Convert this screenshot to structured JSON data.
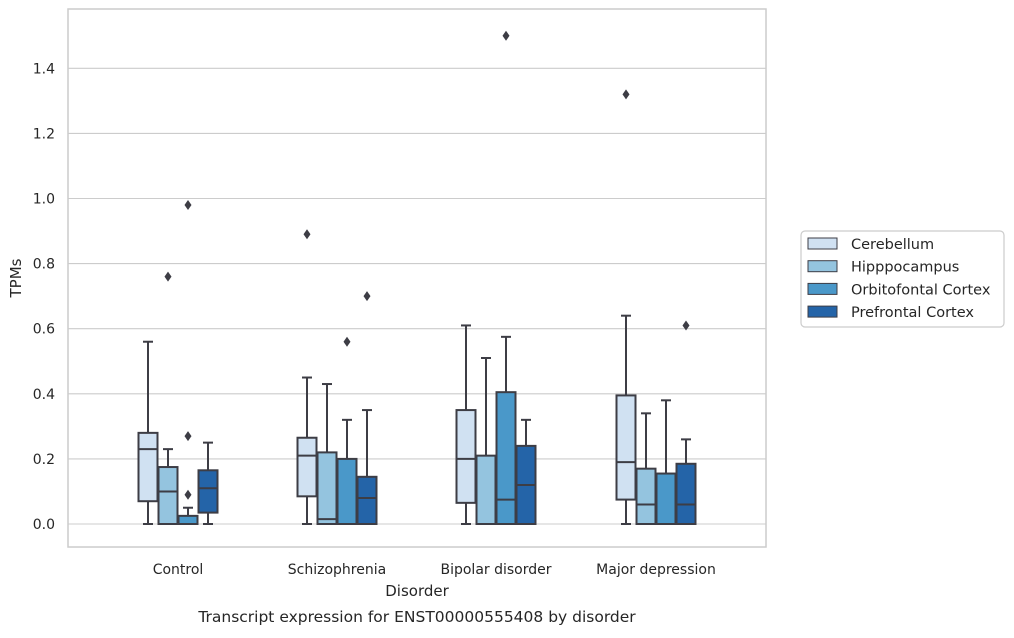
{
  "chart_data": {
    "type": "box",
    "title": "",
    "caption": "Transcript expression for ENST00000555408 by disorder",
    "xlabel": "Disorder",
    "ylabel": "TPMs",
    "ylim": [
      -0.072,
      1.585
    ],
    "yticks": [
      0.0,
      0.2,
      0.4,
      0.6,
      0.8,
      1.0,
      1.2,
      1.4
    ],
    "ytick_labels": [
      "0.0",
      "0.2",
      "0.4",
      "0.6",
      "0.8",
      "1.0",
      "1.2",
      "1.4"
    ],
    "grid": "y",
    "legend_placement": "right",
    "categories": [
      "Control",
      "Schizophrenia",
      "Bipolar disorder",
      "Major depression"
    ],
    "series": [
      {
        "name": "Cerebellum",
        "color": "#d0e1f2",
        "boxes": [
          {
            "whislo": 0.0,
            "q1": 0.07,
            "med": 0.23,
            "q3": 0.28,
            "whishi": 0.56,
            "fliers": []
          },
          {
            "whislo": 0.0,
            "q1": 0.085,
            "med": 0.21,
            "q3": 0.265,
            "whishi": 0.45,
            "fliers": [
              0.89
            ]
          },
          {
            "whislo": 0.0,
            "q1": 0.065,
            "med": 0.2,
            "q3": 0.35,
            "whishi": 0.61,
            "fliers": []
          },
          {
            "whislo": 0.0,
            "q1": 0.075,
            "med": 0.19,
            "q3": 0.395,
            "whishi": 0.64,
            "fliers": [
              1.32
            ]
          }
        ]
      },
      {
        "name": "Hipppocampus",
        "color": "#94c4df",
        "boxes": [
          {
            "whislo": 0.0,
            "q1": 0.0,
            "med": 0.1,
            "q3": 0.175,
            "whishi": 0.23,
            "fliers": [
              0.76
            ]
          },
          {
            "whislo": 0.0,
            "q1": 0.0,
            "med": 0.015,
            "q3": 0.22,
            "whishi": 0.43,
            "fliers": []
          },
          {
            "whislo": 0.0,
            "q1": 0.0,
            "med": 0.0,
            "q3": 0.21,
            "whishi": 0.51,
            "fliers": []
          },
          {
            "whislo": 0.0,
            "q1": 0.0,
            "med": 0.06,
            "q3": 0.17,
            "whishi": 0.34,
            "fliers": []
          }
        ]
      },
      {
        "name": "Orbitofontal Cortex",
        "color": "#4a98c9",
        "boxes": [
          {
            "whislo": 0.0,
            "q1": 0.0,
            "med": 0.0,
            "q3": 0.025,
            "whishi": 0.05,
            "fliers": [
              0.09,
              0.27,
              0.98
            ]
          },
          {
            "whislo": 0.0,
            "q1": 0.0,
            "med": 0.0,
            "q3": 0.2,
            "whishi": 0.32,
            "fliers": [
              0.56
            ]
          },
          {
            "whislo": 0.0,
            "q1": 0.0,
            "med": 0.075,
            "q3": 0.405,
            "whishi": 0.575,
            "fliers": [
              1.5
            ]
          },
          {
            "whislo": 0.0,
            "q1": 0.0,
            "med": 0.0,
            "q3": 0.155,
            "whishi": 0.38,
            "fliers": []
          }
        ]
      },
      {
        "name": "Prefrontal Cortex",
        "color": "#2464a8",
        "boxes": [
          {
            "whislo": 0.0,
            "q1": 0.035,
            "med": 0.11,
            "q3": 0.165,
            "whishi": 0.25,
            "fliers": []
          },
          {
            "whislo": 0.0,
            "q1": 0.0,
            "med": 0.08,
            "q3": 0.145,
            "whishi": 0.35,
            "fliers": [
              0.7
            ]
          },
          {
            "whislo": 0.0,
            "q1": 0.0,
            "med": 0.12,
            "q3": 0.24,
            "whishi": 0.32,
            "fliers": []
          },
          {
            "whislo": 0.0,
            "q1": 0.0,
            "med": 0.06,
            "q3": 0.185,
            "whishi": 0.26,
            "fliers": [
              0.61
            ]
          }
        ]
      }
    ]
  },
  "colors": {
    "box_edge": "#3d3d45",
    "grid": "#cccccc",
    "frame": "#cccccc",
    "text": "#262626"
  }
}
